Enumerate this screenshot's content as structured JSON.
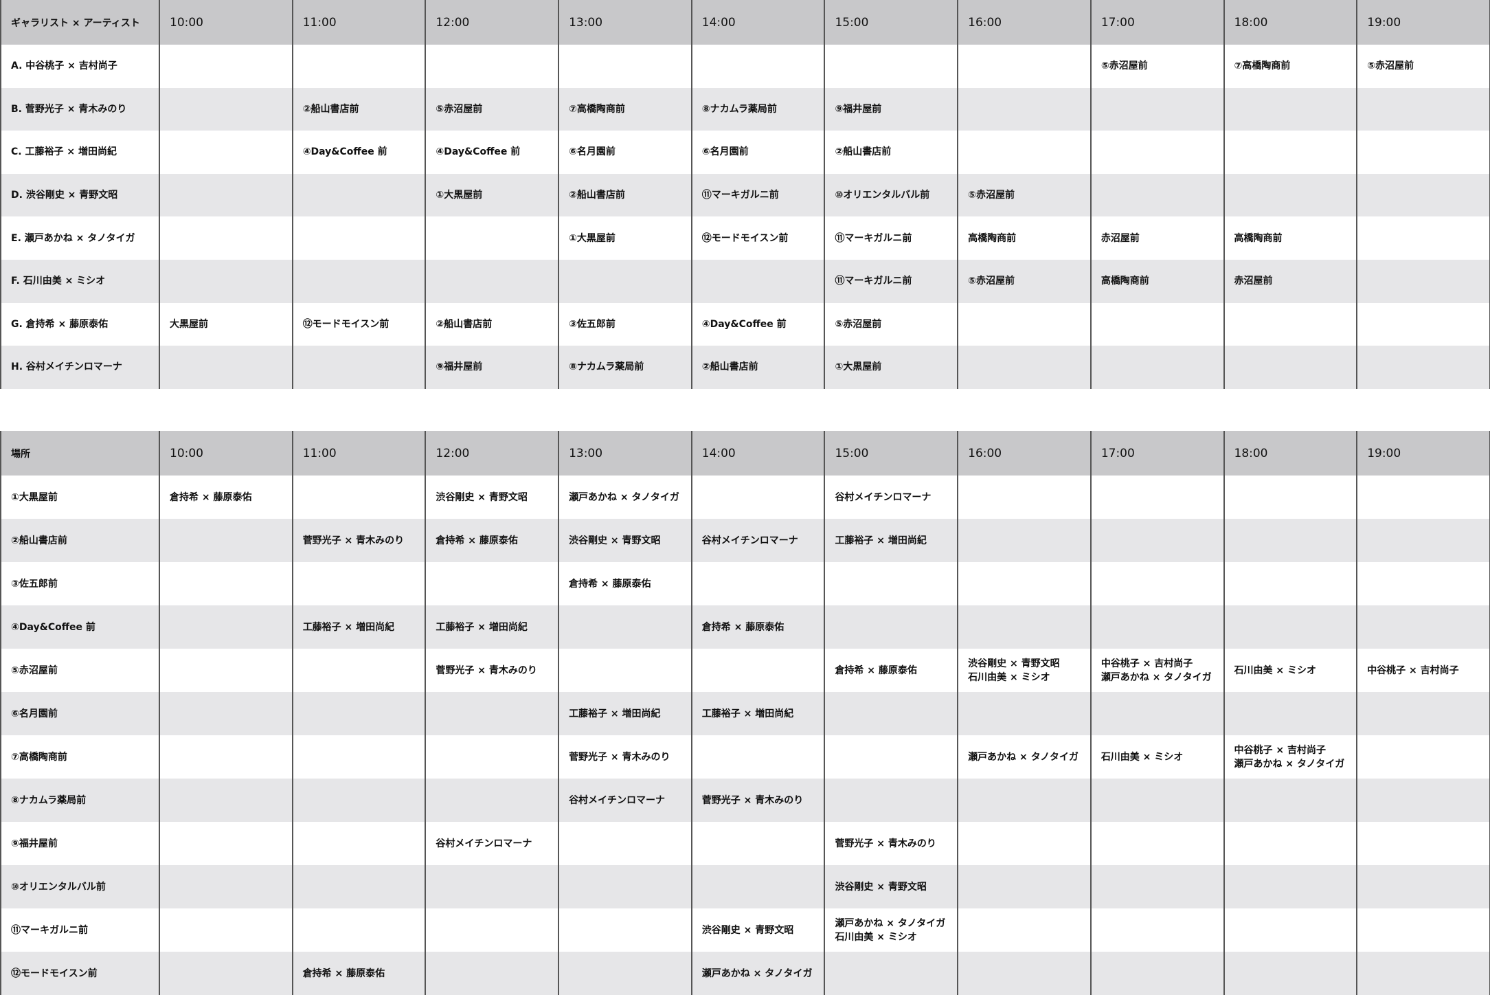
{
  "artist_table": {
    "header": [
      "ギャラリスト × アーティスト",
      "10:00",
      "11:00",
      "12:00",
      "13:00",
      "14:00",
      "15:00",
      "16:00",
      "17:00",
      "18:00",
      "19:00"
    ],
    "rows": [
      [
        "A. 中谷桃子 × 吉村尚子",
        "",
        "",
        "",
        "",
        "",
        "",
        "",
        "⑤赤沼屋前",
        "⑦高橋陶商前",
        "⑤赤沼屋前"
      ],
      [
        "B. 菅野光子 × 青木みのり",
        "",
        "②船山書店前",
        "⑤赤沼屋前",
        "⑦高橋陶商前",
        "⑧ナカムラ薬局前",
        "⑨福井屋前",
        "",
        "",
        "",
        ""
      ],
      [
        "C. 工藤裕子 × 増田尚紀",
        "",
        "④Day&Coffee 前",
        "④Day&Coffee 前",
        "⑥名月園前",
        "⑥名月園前",
        "②船山書店前",
        "",
        "",
        "",
        ""
      ],
      [
        "D. 渋谷剛史 × 青野文昭",
        "",
        "",
        "①大黒屋前",
        "②船山書店前",
        "⑪マーキガルニ前",
        "⑩オリエンタルバル前",
        "⑤赤沼屋前",
        "",
        "",
        ""
      ],
      [
        "E. 瀬戸あかね × タノタイガ",
        "",
        "",
        "",
        "①大黒屋前",
        "⑫モードモイスン前",
        "⑪マーキガルニ前",
        "高橋陶商前",
        "赤沼屋前",
        "高橋陶商前",
        ""
      ],
      [
        "F. 石川由美 × ミシオ",
        "",
        "",
        "",
        "",
        "",
        "⑪マーキガルニ前",
        "⑤赤沼屋前",
        "高橋陶商前",
        "赤沼屋前",
        ""
      ],
      [
        "G. 倉持希 × 藤原泰佑",
        "大黒屋前",
        "⑫モードモイスン前",
        "②船山書店前",
        "③佐五郎前",
        "④Day&Coffee 前",
        "⑤赤沼屋前",
        "",
        "",
        "",
        ""
      ],
      [
        "H. 谷村メイチンロマーナ",
        "",
        "",
        "⑨福井屋前",
        "⑧ナカムラ薬局前",
        "②船山書店前",
        "①大黒屋前",
        "",
        "",
        "",
        ""
      ]
    ]
  },
  "place_table": {
    "header": [
      "場所",
      "10:00",
      "11:00",
      "12:00",
      "13:00",
      "14:00",
      "15:00",
      "16:00",
      "17:00",
      "18:00",
      "19:00"
    ],
    "rows": [
      [
        "①大黒屋前",
        "倉持希 × 藤原泰佑",
        "",
        "渋谷剛史 × 青野文昭",
        "瀬戸あかね × タノタイガ",
        "",
        "谷村メイチンロマーナ",
        "",
        "",
        "",
        ""
      ],
      [
        "②船山書店前",
        "",
        "菅野光子 × 青木みのり",
        "倉持希 × 藤原泰佑",
        "渋谷剛史 × 青野文昭",
        "谷村メイチンロマーナ",
        "工藤裕子 × 増田尚紀",
        "",
        "",
        "",
        ""
      ],
      [
        "③佐五郎前",
        "",
        "",
        "",
        "倉持希 × 藤原泰佑",
        "",
        "",
        "",
        "",
        "",
        ""
      ],
      [
        "④Day&Coffee 前",
        "",
        "工藤裕子 × 増田尚紀",
        "工藤裕子 × 増田尚紀",
        "",
        "倉持希 × 藤原泰佑",
        "",
        "",
        "",
        "",
        ""
      ],
      [
        "⑤赤沼屋前",
        "",
        "",
        "菅野光子 × 青木みのり",
        "",
        "",
        "倉持希 × 藤原泰佑",
        "渋谷剛史 × 青野文昭\n石川由美 × ミシオ",
        "中谷桃子 × 吉村尚子\n瀬戸あかね × タノタイガ",
        "石川由美 × ミシオ",
        "中谷桃子 × 吉村尚子"
      ],
      [
        "⑥名月園前",
        "",
        "",
        "",
        "工藤裕子 × 増田尚紀",
        "工藤裕子 × 増田尚紀",
        "",
        "",
        "",
        "",
        ""
      ],
      [
        "⑦高橋陶商前",
        "",
        "",
        "",
        "菅野光子 × 青木みのり",
        "",
        "",
        "瀬戸あかね × タノタイガ",
        "石川由美 × ミシオ",
        "中谷桃子 × 吉村尚子\n瀬戸あかね × タノタイガ",
        ""
      ],
      [
        "⑧ナカムラ薬局前",
        "",
        "",
        "",
        "谷村メイチンロマーナ",
        "菅野光子 × 青木みのり",
        "",
        "",
        "",
        "",
        ""
      ],
      [
        "⑨福井屋前",
        "",
        "",
        "谷村メイチンロマーナ",
        "",
        "",
        "菅野光子 × 青木みのり",
        "",
        "",
        "",
        ""
      ],
      [
        "⑩オリエンタルバル前",
        "",
        "",
        "",
        "",
        "",
        "渋谷剛史 × 青野文昭",
        "",
        "",
        "",
        ""
      ],
      [
        "⑪マーキガルニ前",
        "",
        "",
        "",
        "",
        "渋谷剛史 × 青野文昭",
        "瀬戸あかね × タノタイガ\n石川由美 × ミシオ",
        "",
        "",
        "",
        ""
      ],
      [
        "⑫モードモイスン前",
        "",
        "倉持希 × 藤原泰佑",
        "",
        "",
        "瀬戸あかね × タノタイガ",
        "",
        "",
        "",
        "",
        ""
      ]
    ]
  }
}
